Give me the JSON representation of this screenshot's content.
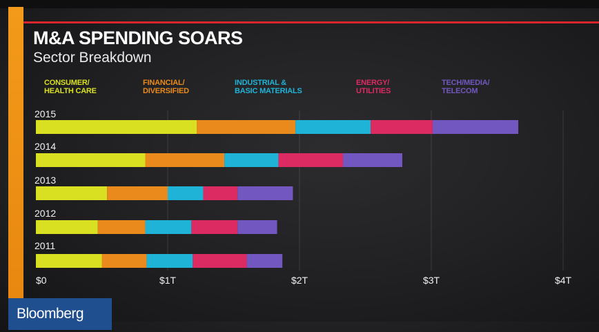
{
  "chart_data": {
    "type": "bar",
    "orientation": "horizontal",
    "stacked": true,
    "title": "M&A SPENDING SOARS",
    "subtitle": "Sector Breakdown",
    "categories": [
      "2015",
      "2014",
      "2013",
      "2012",
      "2011"
    ],
    "series": [
      {
        "name": "CONSUMER/\nHEALTH CARE",
        "color": "#d8e021",
        "values": [
          1.22,
          0.83,
          0.54,
          0.47,
          0.5
        ]
      },
      {
        "name": "FINANCIAL/\nDIVERSIFIED",
        "color": "#ea8a1c",
        "values": [
          0.75,
          0.6,
          0.46,
          0.36,
          0.34
        ]
      },
      {
        "name": "INDUSTRIAL &\nBASIC MATERIALS",
        "color": "#1fb3d8",
        "values": [
          0.57,
          0.41,
          0.27,
          0.35,
          0.35
        ]
      },
      {
        "name": "ENERGY/\nUTILITIES",
        "color": "#dc2a62",
        "values": [
          0.47,
          0.49,
          0.26,
          0.35,
          0.41
        ]
      },
      {
        "name": "TECH/MEDIA/\nTELECOM",
        "color": "#7257c0",
        "values": [
          0.65,
          0.45,
          0.42,
          0.3,
          0.27
        ]
      }
    ],
    "x_ticks": [
      "$0",
      "$1T",
      "$2T",
      "$3T",
      "$4T"
    ],
    "xlim": [
      0,
      4
    ],
    "grid": true,
    "legend_position": "top"
  },
  "brand": {
    "logo_text": "Bloomberg",
    "color": "#1f4f8f"
  },
  "accent": {
    "stripe": "#f39a1a",
    "rule": "#d9262c"
  }
}
